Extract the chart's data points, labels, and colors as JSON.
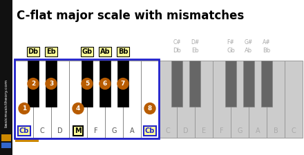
{
  "title": "C-flat major scale with mismatches",
  "title_fontsize": 12,
  "white_keys_first": [
    "Cb",
    "C",
    "D",
    "M",
    "F",
    "G",
    "A",
    "Cb"
  ],
  "white_keys_second": [
    "C",
    "D",
    "E",
    "F",
    "G",
    "A",
    "B",
    "C"
  ],
  "active_color": "#B85C00",
  "highlight_bg": "#FFFF99",
  "blue_color": "#2222CC",
  "grey_key_color": "#AAAAAA",
  "grey_text_color": "#AAAAAA",
  "sidebar_bg": "#111111",
  "sidebar_text_color": "#FFFFFF",
  "sidebar_text": "basicmusictheory.com",
  "orange_bar_color": "#CC8800",
  "blue_bar_color": "#3366CC"
}
